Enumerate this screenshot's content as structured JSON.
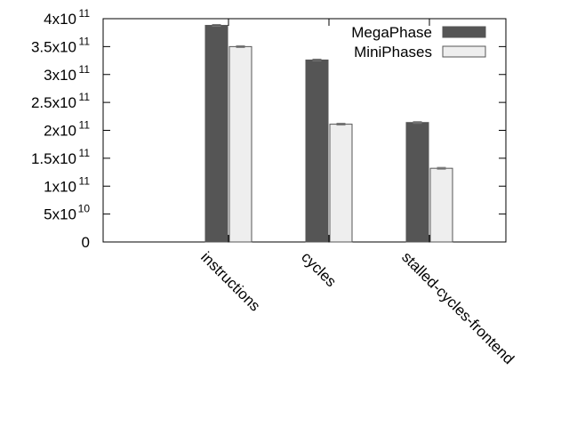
{
  "chart_data": {
    "type": "bar",
    "categories": [
      "instructions",
      "cycles",
      "stalled-cycles-frontend"
    ],
    "series": [
      {
        "name": "MegaPhase",
        "values": [
          388000000000.0,
          326000000000.0,
          214000000000.0
        ],
        "color": "#555555"
      },
      {
        "name": "MiniPhases",
        "values": [
          350000000000.0,
          211000000000.0,
          132000000000.0
        ],
        "color": "#eeeeee"
      }
    ],
    "ylim": [
      0,
      400000000000.0
    ],
    "yticks": [
      {
        "value": 0,
        "mantissa": "0",
        "exp": ""
      },
      {
        "value": 50000000000.0,
        "mantissa": "5x10",
        "exp": "10"
      },
      {
        "value": 100000000000.0,
        "mantissa": "1x10",
        "exp": "11"
      },
      {
        "value": 150000000000.0,
        "mantissa": "1.5x10",
        "exp": "11"
      },
      {
        "value": 200000000000.0,
        "mantissa": "2x10",
        "exp": "11"
      },
      {
        "value": 250000000000.0,
        "mantissa": "2.5x10",
        "exp": "11"
      },
      {
        "value": 300000000000.0,
        "mantissa": "3x10",
        "exp": "11"
      },
      {
        "value": 350000000000.0,
        "mantissa": "3.5x10",
        "exp": "11"
      },
      {
        "value": 400000000000.0,
        "mantissa": "4x10",
        "exp": "11"
      }
    ],
    "error_bars": true,
    "grid": false,
    "legend_position": "top-right",
    "title": "",
    "xlabel": "",
    "ylabel": ""
  }
}
